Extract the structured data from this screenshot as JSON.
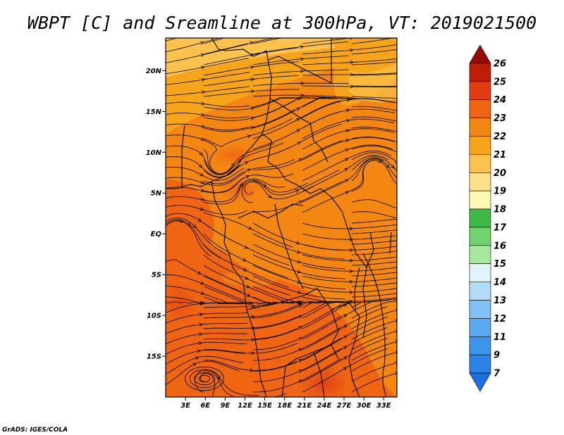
{
  "title": "WBPT [C] and Sreamline at 300hPa, VT: 2019021500",
  "credit": "GrADS: IGES/COLA",
  "map": {
    "lon_range": [
      0,
      35
    ],
    "lat_range": [
      -20,
      24
    ],
    "lon_ticks": [
      {
        "value": 3,
        "label": "3E"
      },
      {
        "value": 6,
        "label": "6E"
      },
      {
        "value": 9,
        "label": "9E"
      },
      {
        "value": 12,
        "label": "12E"
      },
      {
        "value": 15,
        "label": "15E"
      },
      {
        "value": 18,
        "label": "18E"
      },
      {
        "value": 21,
        "label": "21E"
      },
      {
        "value": 24,
        "label": "24E"
      },
      {
        "value": 27,
        "label": "27E"
      },
      {
        "value": 30,
        "label": "30E"
      },
      {
        "value": 33,
        "label": "33E"
      }
    ],
    "lat_ticks": [
      {
        "value": 20,
        "label": "20N"
      },
      {
        "value": 15,
        "label": "15N"
      },
      {
        "value": 10,
        "label": "10N"
      },
      {
        "value": 5,
        "label": "5N"
      },
      {
        "value": 0,
        "label": "EQ"
      },
      {
        "value": -5,
        "label": "5S"
      },
      {
        "value": -10,
        "label": "10S"
      },
      {
        "value": -15,
        "label": "15S"
      }
    ]
  },
  "colorbar": {
    "levels": [
      "7",
      "9",
      "11",
      "12",
      "13",
      "14",
      "15",
      "16",
      "17",
      "18",
      "19",
      "20",
      "21",
      "22",
      "23",
      "24",
      "25",
      "26"
    ],
    "colors": [
      "#1e6fe0",
      "#2b82e8",
      "#3c96ee",
      "#5aaaf2",
      "#82c0f5",
      "#b2dbf8",
      "#e1f5fb",
      "#a8e89c",
      "#6fd46c",
      "#3fb946",
      "#fff9b4",
      "#ffe18a",
      "#fbc24d",
      "#f6a51a",
      "#f48612",
      "#ef6512",
      "#e03d10",
      "#c01d08",
      "#9a0a05"
    ]
  },
  "streamlines": {
    "color": "#000000"
  }
}
